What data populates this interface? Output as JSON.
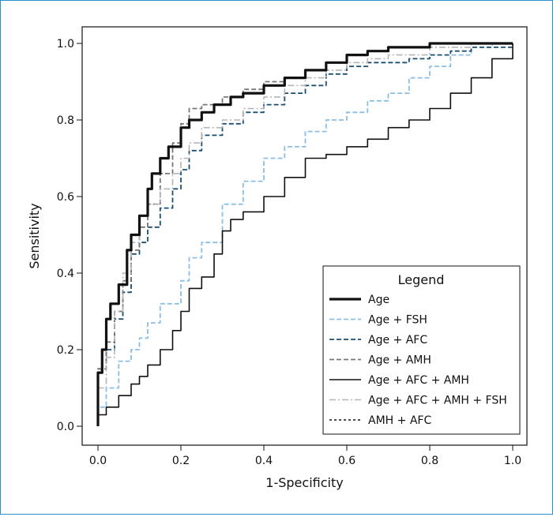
{
  "chart_data": {
    "type": "line",
    "xlabel": "1-Specificity",
    "ylabel": "Sensitivity",
    "xlim": [
      0,
      1
    ],
    "ylim": [
      0,
      1
    ],
    "xticks": [
      "0.0",
      "0.2",
      "0.4",
      "0.6",
      "0.8",
      "1.0"
    ],
    "yticks": [
      "0.0",
      "0.2",
      "0.4",
      "0.6",
      "0.8",
      "1.0"
    ],
    "grid": false,
    "legend": {
      "title": "Legend",
      "position": "bottom-right"
    },
    "series": [
      {
        "name": "Age",
        "color": "#111111",
        "style": "solid-thick",
        "x": [
          0,
          0,
          0.01,
          0.02,
          0.03,
          0.05,
          0.07,
          0.08,
          0.1,
          0.12,
          0.13,
          0.15,
          0.17,
          0.2,
          0.22,
          0.25,
          0.28,
          0.32,
          0.35,
          0.4,
          0.45,
          0.5,
          0.55,
          0.6,
          0.65,
          0.7,
          0.8,
          0.9,
          1
        ],
        "y": [
          0,
          0.14,
          0.2,
          0.28,
          0.32,
          0.37,
          0.46,
          0.5,
          0.55,
          0.62,
          0.66,
          0.7,
          0.73,
          0.78,
          0.8,
          0.82,
          0.84,
          0.86,
          0.87,
          0.89,
          0.91,
          0.93,
          0.95,
          0.97,
          0.98,
          0.99,
          1,
          1,
          1
        ]
      },
      {
        "name": "Age + FSH",
        "color": "#8bbfe6",
        "style": "dashed",
        "x": [
          0,
          0,
          0.02,
          0.05,
          0.08,
          0.1,
          0.12,
          0.15,
          0.2,
          0.22,
          0.25,
          0.3,
          0.35,
          0.4,
          0.45,
          0.5,
          0.55,
          0.6,
          0.65,
          0.7,
          0.75,
          0.8,
          0.85,
          0.9,
          0.95,
          1
        ],
        "y": [
          0,
          0.05,
          0.1,
          0.17,
          0.2,
          0.23,
          0.27,
          0.32,
          0.38,
          0.44,
          0.48,
          0.58,
          0.64,
          0.7,
          0.73,
          0.77,
          0.8,
          0.82,
          0.85,
          0.87,
          0.91,
          0.94,
          0.97,
          0.99,
          1,
          1
        ]
      },
      {
        "name": "Age + AFC",
        "color": "#1a4f72",
        "style": "dashed",
        "x": [
          0,
          0,
          0.02,
          0.04,
          0.06,
          0.08,
          0.1,
          0.12,
          0.15,
          0.18,
          0.2,
          0.22,
          0.25,
          0.3,
          0.35,
          0.4,
          0.45,
          0.5,
          0.55,
          0.6,
          0.65,
          0.7,
          0.75,
          0.8,
          0.85,
          0.9,
          1
        ],
        "y": [
          0,
          0.15,
          0.2,
          0.28,
          0.35,
          0.45,
          0.48,
          0.52,
          0.57,
          0.62,
          0.67,
          0.72,
          0.76,
          0.79,
          0.82,
          0.84,
          0.87,
          0.89,
          0.92,
          0.94,
          0.95,
          0.95,
          0.96,
          0.97,
          0.98,
          0.99,
          1
        ]
      },
      {
        "name": "Age + AMH",
        "color": "#777777",
        "style": "dashed",
        "x": [
          0,
          0,
          0.02,
          0.04,
          0.06,
          0.08,
          0.1,
          0.12,
          0.15,
          0.18,
          0.2,
          0.22,
          0.25,
          0.3,
          0.35,
          0.4,
          0.45,
          0.5,
          0.55,
          0.6,
          0.65,
          0.7,
          0.8,
          0.9,
          1
        ],
        "y": [
          0,
          0.15,
          0.22,
          0.3,
          0.38,
          0.46,
          0.52,
          0.58,
          0.66,
          0.74,
          0.79,
          0.83,
          0.84,
          0.86,
          0.88,
          0.9,
          0.91,
          0.93,
          0.95,
          0.97,
          0.98,
          0.99,
          1,
          1,
          1
        ]
      },
      {
        "name": "Age + AFC + AMH",
        "color": "#111111",
        "style": "solid",
        "x": [
          0,
          0,
          0.02,
          0.05,
          0.08,
          0.1,
          0.12,
          0.15,
          0.18,
          0.2,
          0.22,
          0.25,
          0.28,
          0.3,
          0.32,
          0.35,
          0.4,
          0.45,
          0.5,
          0.55,
          0.6,
          0.65,
          0.7,
          0.75,
          0.8,
          0.85,
          0.9,
          0.95,
          1
        ],
        "y": [
          0,
          0.03,
          0.05,
          0.08,
          0.11,
          0.13,
          0.16,
          0.2,
          0.25,
          0.3,
          0.36,
          0.39,
          0.45,
          0.51,
          0.54,
          0.56,
          0.6,
          0.65,
          0.7,
          0.71,
          0.73,
          0.75,
          0.78,
          0.8,
          0.83,
          0.87,
          0.91,
          0.96,
          1
        ]
      },
      {
        "name": "Age + AFC + AMH + FSH",
        "color": "#b5b5b5",
        "style": "dashdot",
        "x": [
          0,
          0,
          0.02,
          0.04,
          0.06,
          0.08,
          0.1,
          0.12,
          0.15,
          0.18,
          0.2,
          0.22,
          0.25,
          0.3,
          0.35,
          0.4,
          0.45,
          0.5,
          0.55,
          0.6,
          0.65,
          0.7,
          0.8,
          0.9,
          1
        ],
        "y": [
          0,
          0.1,
          0.18,
          0.3,
          0.4,
          0.48,
          0.55,
          0.58,
          0.62,
          0.66,
          0.7,
          0.74,
          0.78,
          0.8,
          0.83,
          0.86,
          0.89,
          0.91,
          0.93,
          0.95,
          0.96,
          0.97,
          0.99,
          1,
          1
        ]
      },
      {
        "name": "AMH + AFC",
        "color": "#111111",
        "style": "dotted",
        "x": [],
        "y": []
      }
    ]
  }
}
